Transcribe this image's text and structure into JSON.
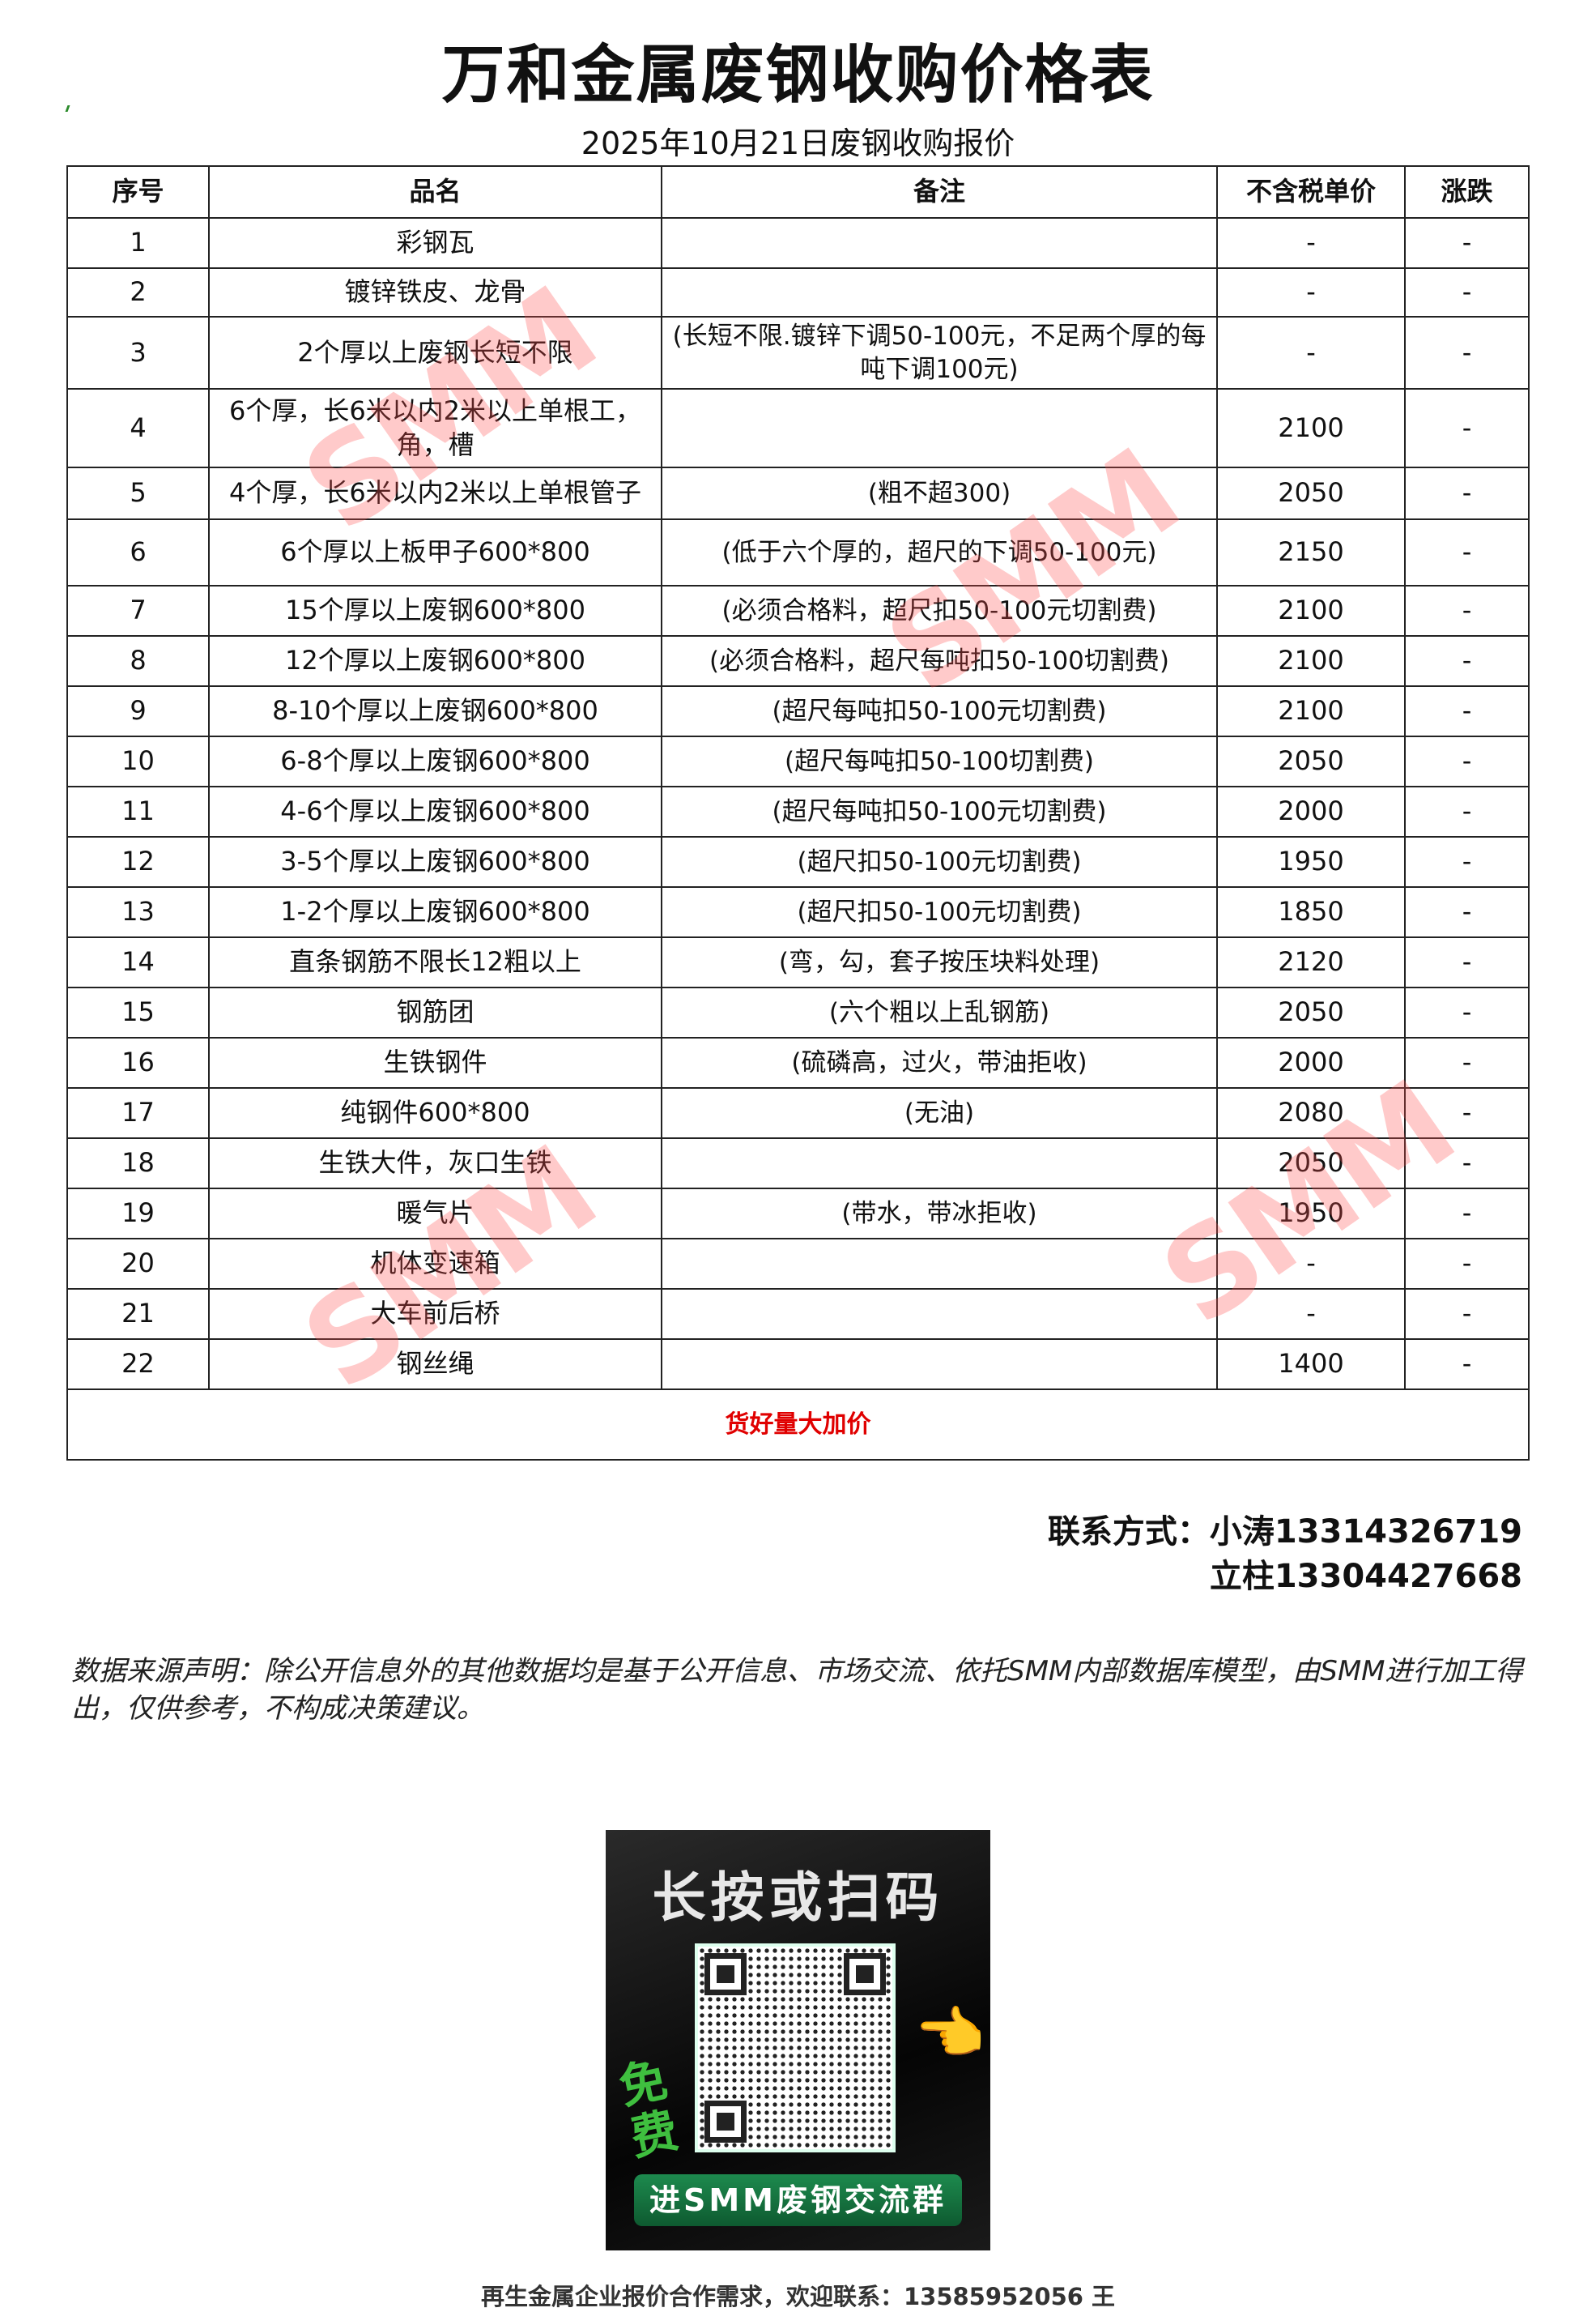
{
  "title": "万和金属废钢收购价格表",
  "subtitle": "2025年10月21日废钢收购报价",
  "table": {
    "headers": [
      "序号",
      "品名",
      "备注",
      "不含税单价",
      "涨跌"
    ],
    "rows": [
      [
        "1",
        "彩钢瓦",
        "",
        "-",
        "-"
      ],
      [
        "2",
        "镀锌铁皮、龙骨",
        "",
        "-",
        "-"
      ],
      [
        "3",
        "2个厚以上废钢长短不限",
        "(长短不限.镀锌下调50-100元，不足两个厚的每吨下调100元)",
        "-",
        "-"
      ],
      [
        "4",
        "6个厚，长6米以内2米以上单根工，角，槽",
        "",
        "2100",
        "-"
      ],
      [
        "5",
        "4个厚，长6米以内2米以上单根管子",
        "(粗不超300)",
        "2050",
        "-"
      ],
      [
        "6",
        "6个厚以上板甲子600*800",
        "(低于六个厚的，超尺的下调50-100元)",
        "2150",
        "-"
      ],
      [
        "7",
        "15个厚以上废钢600*800",
        "(必须合格料，超尺扣50-100元切割费)",
        "2100",
        "-"
      ],
      [
        "8",
        "12个厚以上废钢600*800",
        "(必须合格料，超尺每吨扣50-100切割费)",
        "2100",
        "-"
      ],
      [
        "9",
        "8-10个厚以上废钢600*800",
        "(超尺每吨扣50-100元切割费)",
        "2100",
        "-"
      ],
      [
        "10",
        "6-8个厚以上废钢600*800",
        "(超尺每吨扣50-100切割费)",
        "2050",
        "-"
      ],
      [
        "11",
        "4-6个厚以上废钢600*800",
        "(超尺每吨扣50-100元切割费)",
        "2000",
        "-"
      ],
      [
        "12",
        "3-5个厚以上废钢600*800",
        "(超尺扣50-100元切割费)",
        "1950",
        "-"
      ],
      [
        "13",
        "1-2个厚以上废钢600*800",
        "(超尺扣50-100元切割费)",
        "1850",
        "-"
      ],
      [
        "14",
        "直条钢筋不限长12粗以上",
        "(弯，勾，套子按压块料处理)",
        "2120",
        "-"
      ],
      [
        "15",
        "钢筋团",
        "(六个粗以上乱钢筋)",
        "2050",
        "-"
      ],
      [
        "16",
        "生铁钢件",
        "(硫磷高，过火，带油拒收)",
        "2000",
        "-"
      ],
      [
        "17",
        "纯钢件600*800",
        "(无油)",
        "2080",
        "-"
      ],
      [
        "18",
        "生铁大件，灰口生铁",
        "",
        "2050",
        "-"
      ],
      [
        "19",
        "暖气片",
        "(带水，带冰拒收)",
        "1950",
        "-"
      ],
      [
        "20",
        "机体变速箱",
        "",
        "-",
        "-"
      ],
      [
        "21",
        "大车前后桥",
        "",
        "-",
        "-"
      ],
      [
        "22",
        "钢丝绳",
        "",
        "1400",
        "-"
      ]
    ],
    "footer": "货好量大加价"
  },
  "contact": {
    "line1": "联系方式：小涛13314326719",
    "line2": "立柱13304427668"
  },
  "disclaimer": "数据来源声明：除公开信息外的其他数据均是基于公开信息、市场交流、依托SMM内部数据库模型，由SMM进行加工得出，仅供参考，不构成决策建议。",
  "qr": {
    "heading": "长按或扫码",
    "free": "免费",
    "button": "进SMM废钢交流群"
  },
  "bottom_note": "再生金属企业报价合作需求，欢迎联系：13585952056 王",
  "watermark": "SMM",
  "colors": {
    "footer_text": "#e00000",
    "watermark": "#ff5050",
    "qr_button": "#1d8a4e"
  }
}
